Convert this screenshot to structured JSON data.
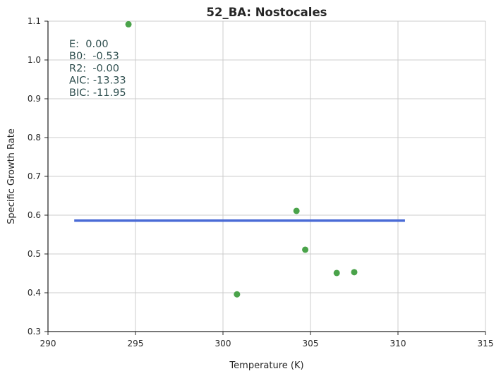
{
  "chart_data": {
    "type": "scatter",
    "title": "52_BA: Nostocales",
    "xlabel": "Temperature (K)",
    "ylabel": "Specific Growth Rate",
    "xlim": [
      290,
      315
    ],
    "ylim": [
      0.3,
      1.1
    ],
    "xticks": [
      290,
      295,
      300,
      305,
      310,
      315
    ],
    "yticks": [
      0.3,
      0.4,
      0.5,
      0.6,
      0.7,
      0.8,
      0.9,
      1.0,
      1.1
    ],
    "grid": true,
    "series": [
      {
        "type": "scatter",
        "color": "#4aa34a",
        "points": [
          {
            "x": 294.6,
            "y": 1.092
          },
          {
            "x": 300.8,
            "y": 0.396
          },
          {
            "x": 304.2,
            "y": 0.611
          },
          {
            "x": 304.7,
            "y": 0.511
          },
          {
            "x": 306.5,
            "y": 0.451
          },
          {
            "x": 307.5,
            "y": 0.453
          }
        ]
      },
      {
        "type": "line",
        "color": "#4a6bd6",
        "points": [
          {
            "x": 291.5,
            "y": 0.586
          },
          {
            "x": 310.4,
            "y": 0.586
          }
        ]
      }
    ],
    "annotations": [
      "E:  0.00",
      "B0:  -0.53",
      "R2:  -0.00",
      "AIC: -13.33",
      "BIC: -11.95"
    ]
  }
}
